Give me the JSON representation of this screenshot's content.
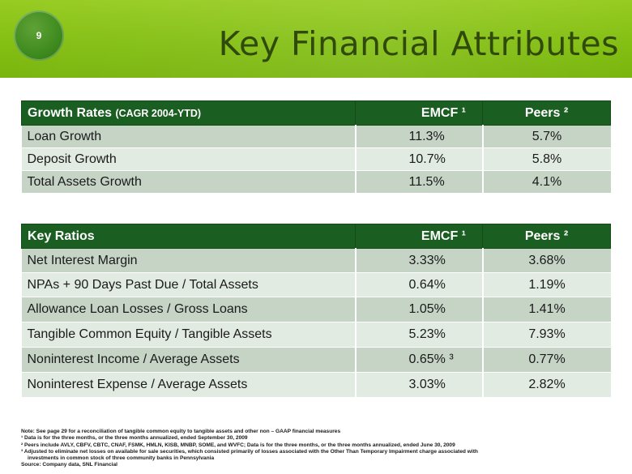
{
  "slide": {
    "page_number": "9",
    "title": "Key Financial Attributes"
  },
  "growth_table": {
    "header": {
      "label": "Growth Rates",
      "label_sub": "(CAGR 2004-YTD)",
      "col1": "EMCF ¹",
      "col2": "Peers ²"
    },
    "rows": [
      {
        "label": "Loan Growth",
        "emcf": "11.3%",
        "peers": "5.7%"
      },
      {
        "label": "Deposit Growth",
        "emcf": "10.7%",
        "peers": "5.8%"
      },
      {
        "label": "Total Assets Growth",
        "emcf": "11.5%",
        "peers": "4.1%"
      }
    ]
  },
  "ratios_table": {
    "header": {
      "label": "Key Ratios",
      "col1": "EMCF ¹",
      "col2": "Peers ²"
    },
    "rows": [
      {
        "label": "Net Interest Margin",
        "emcf": "3.33%",
        "peers": "3.68%"
      },
      {
        "label": "NPAs + 90 Days Past Due /  Total Assets",
        "emcf": "0.64%",
        "peers": "1.19%"
      },
      {
        "label": "Allowance Loan Losses / Gross Loans",
        "emcf": "1.05%",
        "peers": "1.41%"
      },
      {
        "label": "Tangible Common Equity /  Tangible Assets",
        "emcf": "5.23%",
        "peers": "7.93%"
      },
      {
        "label": "Noninterest Income / Average Assets",
        "emcf": "0.65% ³",
        "peers": "0.77%"
      },
      {
        "label": "Noninterest Expense / Average Assets",
        "emcf": "3.03%",
        "peers": "2.82%"
      }
    ]
  },
  "notes": {
    "note": "Note: See page 29 for a reconciliation of tangible common equity to tangible assets and other non – GAAP financial measures",
    "fn1": "¹ Data is for the three months, or the three months annualized, ended September 30, 2009",
    "fn2": "² Peers include AVLY, CBFV, CBTC, CNAF, FSMK, HMLN, KISB, MNBP, SOME, and WVFC; Data is for the three months, or the three months annualized, ended June 30, 2009",
    "fn3_line1": "³ Adjusted to eliminate net losses on available for sale securities, which consisted primarily of losses associated with the Other Than Temporary Impairment charge associated with",
    "fn3_line2": "investments in common stock of three community banks in Pennsylvania",
    "source": "Source: Company data, SNL Financial"
  },
  "colors": {
    "header_green": "#84bf14",
    "table_header": "#1b5e22",
    "row_light": "#e2ebe2",
    "row_dark": "#c6d4c6",
    "title_text": "#2f4a0a"
  }
}
